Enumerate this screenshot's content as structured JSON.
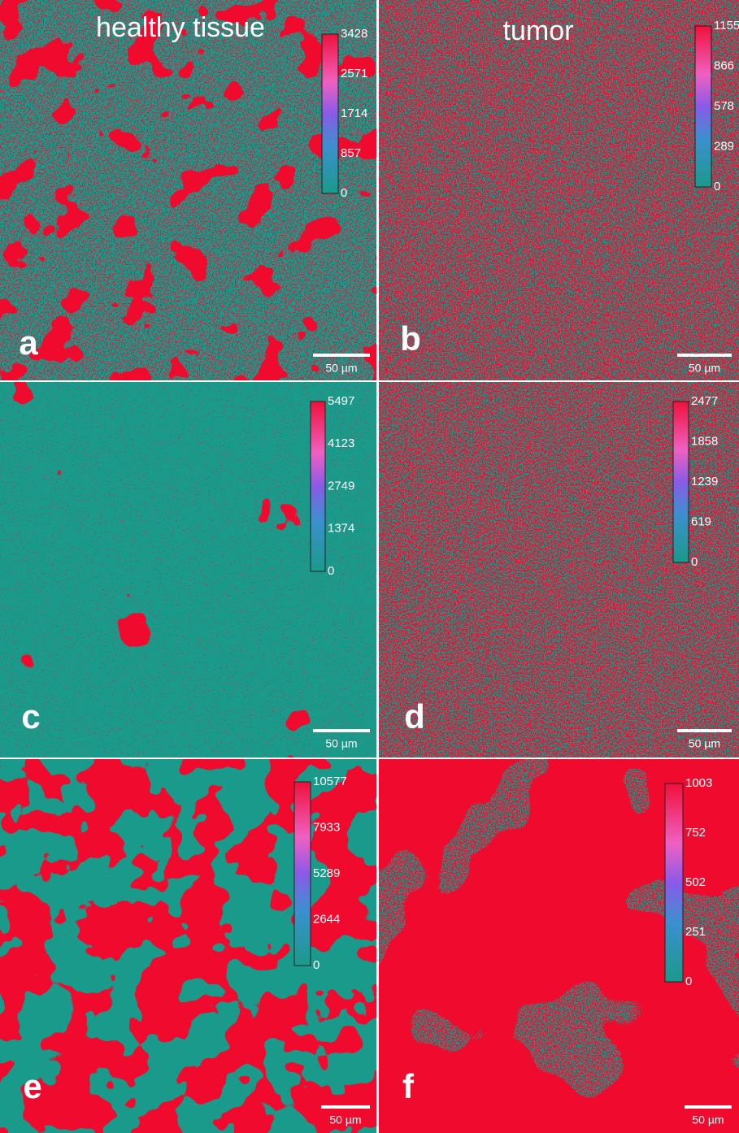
{
  "column_titles": [
    "healthy tissue",
    "tumor"
  ],
  "panels": [
    {
      "letter": "a",
      "colorbar_ticks": [
        0,
        857,
        1714,
        2571,
        3428
      ],
      "scale_label": "50 µm"
    },
    {
      "letter": "b",
      "colorbar_ticks": [
        0,
        289,
        578,
        866,
        1155
      ],
      "scale_label": "50 µm"
    },
    {
      "letter": "c",
      "colorbar_ticks": [
        0,
        1374,
        2749,
        4123,
        5497
      ],
      "scale_label": "50 µm"
    },
    {
      "letter": "d",
      "colorbar_ticks": [
        0,
        619,
        1239,
        1858,
        2477
      ],
      "scale_label": "50 µm"
    },
    {
      "letter": "e",
      "colorbar_ticks": [
        0,
        2644,
        5289,
        7933,
        10577
      ],
      "scale_label": "50 µm"
    },
    {
      "letter": "f",
      "colorbar_ticks": [
        0,
        251,
        502,
        752,
        1003
      ],
      "scale_label": "50 µm"
    }
  ]
}
